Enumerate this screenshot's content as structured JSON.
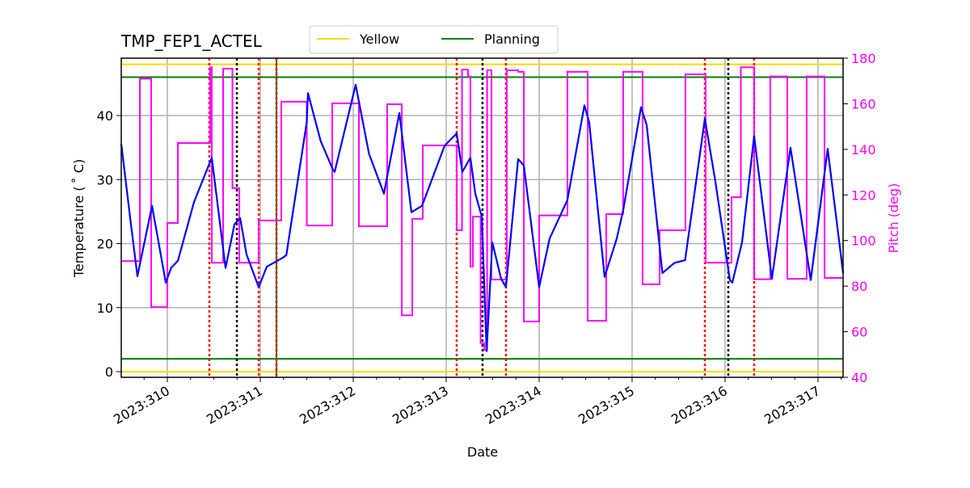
{
  "chart_data": {
    "type": "line",
    "title": "TMP_FEP1_ACTEL",
    "xlabel": "Date",
    "ylabel": "Temperature ($^\\circ$C)",
    "ylabel_display": "Temperature ( ˚ C)",
    "y2label": "Pitch (deg)",
    "xlim": [
      309.504,
      317.27
    ],
    "ylim": [
      -1,
      49
    ],
    "y2lim": [
      40,
      180
    ],
    "x_ticks": [
      310,
      311,
      312,
      313,
      314,
      315,
      316,
      317
    ],
    "x_tick_labels": [
      "2023:310",
      "2023:311",
      "2023:312",
      "2023:313",
      "2023:314",
      "2023:315",
      "2023:316",
      "2023:317"
    ],
    "y_ticks": [
      0,
      10,
      20,
      30,
      40
    ],
    "y_tick_labels": [
      "0",
      "10",
      "20",
      "30",
      "40"
    ],
    "y2_ticks": [
      40,
      60,
      80,
      100,
      120,
      140,
      160,
      180
    ],
    "y2_tick_labels": [
      "40",
      "60",
      "80",
      "100",
      "120",
      "140",
      "160",
      "180"
    ],
    "grid": true,
    "legend": {
      "placement": "top-center",
      "entries": [
        {
          "name": "Yellow",
          "color": "#ffd700"
        },
        {
          "name": "Planning",
          "color": "#008000"
        }
      ]
    },
    "limits": {
      "yellow": [
        0,
        48
      ],
      "planning": [
        2,
        46
      ]
    },
    "colors": {
      "temperature": "#0000ff",
      "pitch": "#ff00ff",
      "yellow": "#ffd700",
      "planning": "#008000",
      "red_marker": "#ff0000",
      "black_marker": "#000000",
      "y2_axis": "#ff00ff"
    },
    "vertical_markers": [
      {
        "x": 310.452,
        "color": "red",
        "style": "dotted"
      },
      {
        "x": 310.748,
        "color": "black",
        "style": "dotted"
      },
      {
        "x": 310.983,
        "color": "red",
        "style": "dotted"
      },
      {
        "x": 311.174,
        "color": "green",
        "style": "solid"
      },
      {
        "x": 311.174,
        "color": "red",
        "style": "dotted"
      },
      {
        "x": 313.113,
        "color": "red",
        "style": "dotted"
      },
      {
        "x": 313.391,
        "color": "black",
        "style": "dotted"
      },
      {
        "x": 313.643,
        "color": "red",
        "style": "dotted"
      },
      {
        "x": 315.783,
        "color": "red",
        "style": "dotted"
      },
      {
        "x": 316.035,
        "color": "black",
        "style": "dotted"
      },
      {
        "x": 316.313,
        "color": "red",
        "style": "dotted"
      }
    ],
    "series": [
      {
        "axis": "left",
        "x": [
          309.504,
          309.6,
          309.678,
          309.835,
          309.983,
          310.04,
          310.113,
          310.287,
          310.478,
          310.626,
          310.722,
          310.783,
          310.852,
          310.983,
          311.07,
          311.243,
          311.28,
          311.5,
          311.513,
          311.65,
          311.783,
          311.8,
          312.026,
          312.17,
          312.33,
          312.496,
          312.626,
          312.74,
          312.983,
          313.113,
          313.174,
          313.26,
          313.313,
          313.383,
          313.435,
          313.496,
          313.591,
          313.643,
          313.774,
          313.835,
          314.0,
          314.113,
          314.304,
          314.487,
          314.539,
          314.704,
          314.835,
          314.904,
          315.096,
          315.157,
          315.326,
          315.457,
          315.57,
          315.783,
          315.896,
          316.052,
          316.078,
          316.183,
          316.313,
          316.504,
          316.704,
          316.922,
          317.104,
          317.27
        ],
        "y": [
          35.6,
          24,
          14.9,
          25.9,
          13.9,
          16.2,
          17.3,
          26.5,
          33.4,
          16.2,
          23.0,
          24.0,
          18.3,
          13.2,
          16.4,
          17.8,
          18.2,
          39,
          43.5,
          36,
          31.5,
          31.2,
          44.8,
          34,
          27.8,
          40.4,
          24.9,
          25.9,
          35.3,
          37.2,
          31.2,
          33.4,
          27.8,
          24.2,
          3.2,
          20.2,
          14.5,
          13.2,
          33.2,
          32.2,
          13.2,
          20.8,
          26.8,
          41.6,
          38.9,
          14.8,
          20.8,
          25.2,
          41.3,
          38.5,
          15.4,
          17.0,
          17.4,
          39.5,
          29.7,
          14.3,
          13.9,
          20.2,
          36.8,
          14.5,
          35.0,
          14.3,
          34.8,
          15.4
        ]
      },
      {
        "axis": "right",
        "step": true,
        "x": [
          309.504,
          309.705,
          309.826,
          310.0,
          310.113,
          310.461,
          310.478,
          310.6,
          310.7,
          310.774,
          310.983,
          311.226,
          311.5,
          311.774,
          312.061,
          312.365,
          312.522,
          312.635,
          312.748,
          313.113,
          313.17,
          313.235,
          313.26,
          313.287,
          313.37,
          313.41,
          313.44,
          313.487,
          313.652,
          313.774,
          313.835,
          314.0,
          314.304,
          314.522,
          314.722,
          314.904,
          315.113,
          315.296,
          315.574,
          315.791,
          316.07,
          316.17,
          316.313,
          316.487,
          316.67,
          316.878,
          317.07,
          317.27
        ],
        "y": [
          91,
          171,
          70.8,
          107.7,
          142.8,
          176,
          90.3,
          175.4,
          123,
          90.3,
          108.8,
          160.9,
          106.6,
          160.2,
          106.3,
          159.8,
          67.2,
          109.5,
          141.7,
          104.5,
          175,
          172,
          88.6,
          110.5,
          55,
          52,
          174.7,
          82.9,
          174.7,
          174,
          64.5,
          111,
          174,
          64.8,
          111.6,
          174,
          80.8,
          104.5,
          172.9,
          90.3,
          119,
          176,
          83,
          172,
          83.2,
          172,
          83.6,
          83.6
        ]
      }
    ]
  }
}
